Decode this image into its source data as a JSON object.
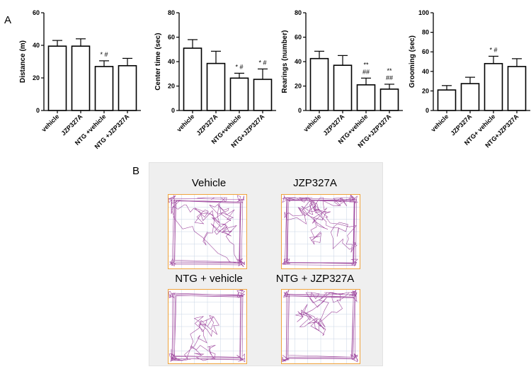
{
  "panels": {
    "a": "A",
    "b": "B"
  },
  "chart_data": [
    {
      "type": "bar",
      "ylabel": "Distance (m)",
      "ylim": [
        0,
        60
      ],
      "yticks": [
        0,
        20,
        40,
        60
      ],
      "categories": [
        "vehicle",
        "JZP327A",
        "NTG +vehicle",
        "NTG +JZP327A"
      ],
      "values": [
        39.5,
        39.5,
        27,
        27.5
      ],
      "errors": [
        3.5,
        4.5,
        3.5,
        4.5
      ],
      "annotations": [
        "",
        "",
        "* #",
        ""
      ]
    },
    {
      "type": "bar",
      "ylabel": "Center time (sec)",
      "ylim": [
        0,
        80
      ],
      "yticks": [
        0,
        20,
        40,
        60,
        80
      ],
      "categories": [
        "vehicle",
        "JZP327A",
        "NTG+vehicle",
        "NTG+JZP327A"
      ],
      "values": [
        51,
        38.5,
        26.5,
        25.5
      ],
      "errors": [
        7,
        10,
        4,
        8.5
      ],
      "annotations": [
        "",
        "",
        "* #",
        "* #"
      ]
    },
    {
      "type": "bar",
      "ylabel": "Rearings (number)",
      "ylim": [
        0,
        80
      ],
      "yticks": [
        0,
        20,
        40,
        60,
        80
      ],
      "categories": [
        "vehicle",
        "JZP327A",
        "NTG+vehicle",
        "NTG+JZP327A"
      ],
      "values": [
        42.5,
        37,
        21,
        17.5
      ],
      "errors": [
        6,
        8,
        5.5,
        4
      ],
      "annotations": [
        "",
        "",
        "**\n##",
        "**\n##"
      ]
    },
    {
      "type": "bar",
      "ylabel": "Grooming (sec)",
      "ylim": [
        0,
        100
      ],
      "yticks": [
        0,
        20,
        40,
        60,
        80,
        100
      ],
      "categories": [
        "vehicle",
        "JZP327A",
        "NTG+ vehicle",
        "NTG+JZP327A"
      ],
      "values": [
        21,
        27.5,
        48,
        45
      ],
      "errors": [
        4.5,
        6.5,
        7.5,
        8
      ],
      "annotations": [
        "",
        "",
        "* #",
        ""
      ]
    }
  ],
  "tracks": [
    {
      "label": "Vehicle",
      "density": 26,
      "seed": 3
    },
    {
      "label": "JZP327A",
      "density": 34,
      "seed": 7
    },
    {
      "label": "NTG + vehicle",
      "density": 18,
      "seed": 11
    },
    {
      "label": "NTG + JZP327A",
      "density": 22,
      "seed": 19
    }
  ],
  "colors": {
    "bar_fill": "#ffffff",
    "bar_stroke": "#000000",
    "track_line": "#8e2a8e",
    "arena_border": "#f0a33c",
    "grid": "#c8d6e5"
  }
}
